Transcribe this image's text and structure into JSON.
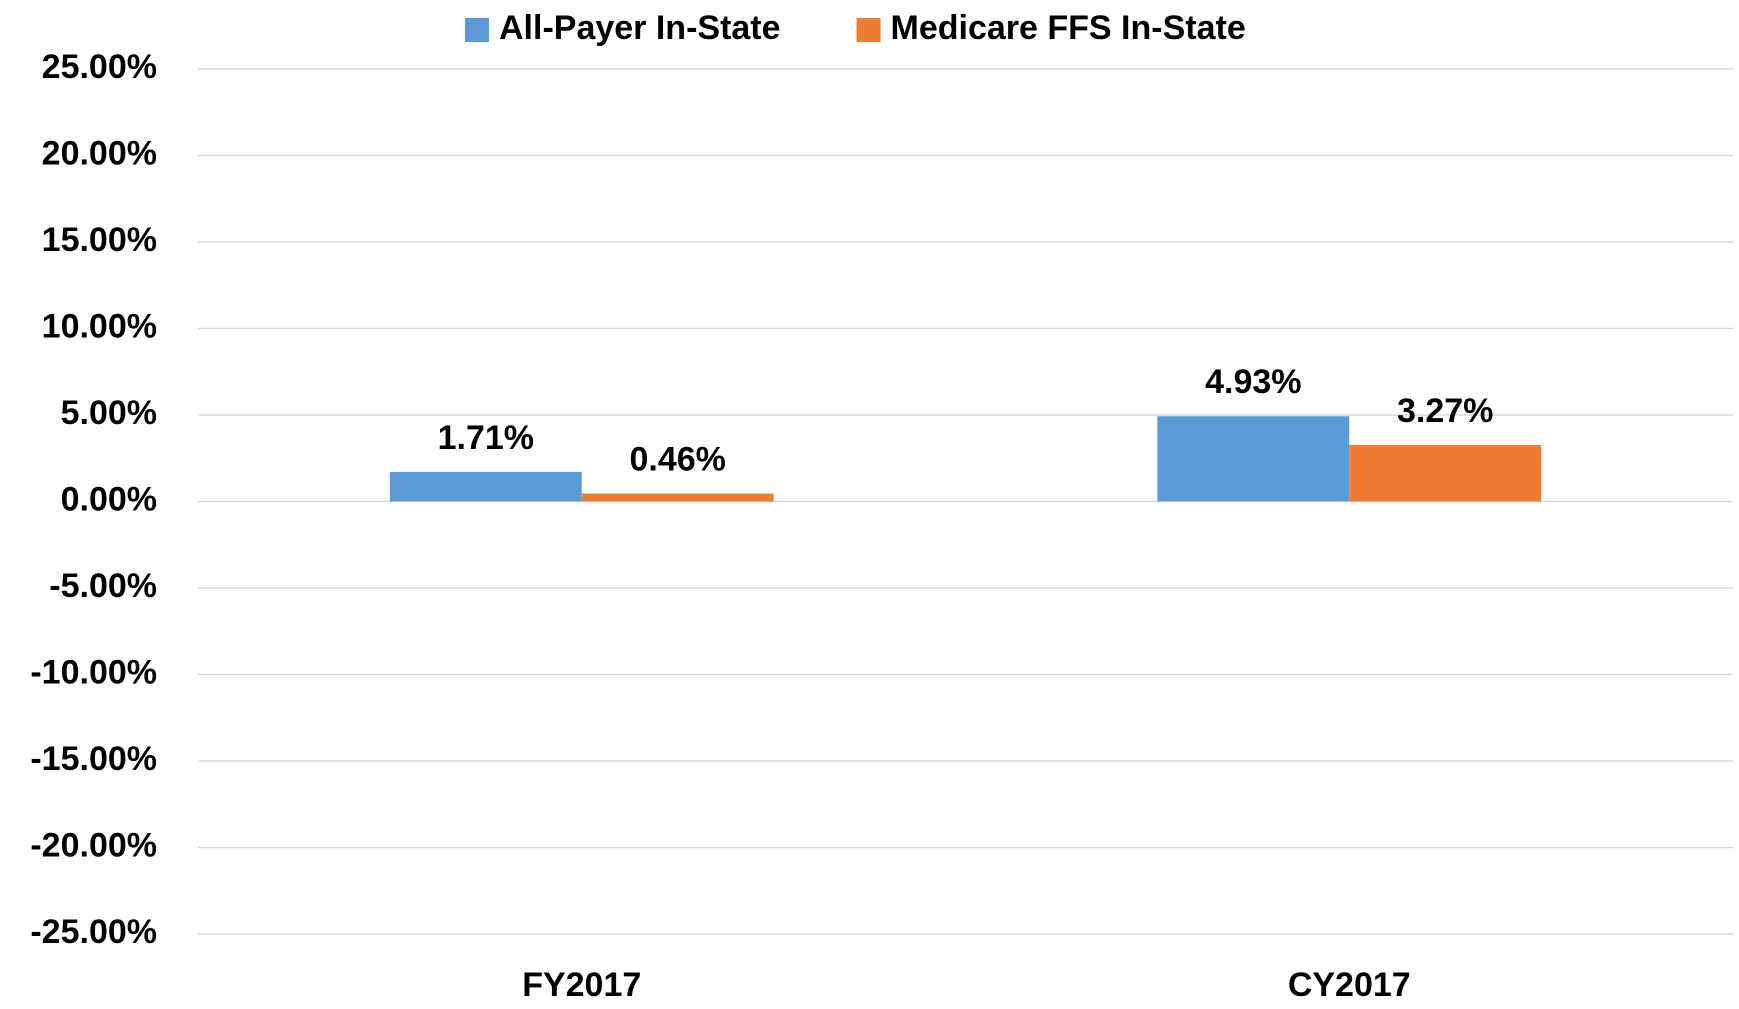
{
  "chart_data": {
    "type": "bar",
    "categories": [
      "FY2017",
      "CY2017"
    ],
    "series": [
      {
        "name": "All-Payer In-State",
        "color": "#5b9bd5",
        "values": [
          1.71,
          4.93
        ],
        "value_labels": [
          "1.71%",
          "4.93%"
        ]
      },
      {
        "name": "Medicare FFS In-State",
        "color": "#ed7d31",
        "values": [
          0.46,
          3.27
        ],
        "value_labels": [
          "0.46%",
          "3.27%"
        ]
      }
    ],
    "ylim": [
      -25,
      25
    ],
    "yticks": [
      {
        "value": -25,
        "label": "-25.00%"
      },
      {
        "value": -20,
        "label": "-20.00%"
      },
      {
        "value": -15,
        "label": "-15.00%"
      },
      {
        "value": -10,
        "label": "-10.00%"
      },
      {
        "value": -5,
        "label": "-5.00%"
      },
      {
        "value": 0,
        "label": "0.00%"
      },
      {
        "value": 5,
        "label": "5.00%"
      },
      {
        "value": 10,
        "label": "10.00%"
      },
      {
        "value": 15,
        "label": "15.00%"
      },
      {
        "value": 20,
        "label": "20.00%"
      },
      {
        "value": 25,
        "label": "25.00%"
      }
    ],
    "grid": true,
    "legend": "top"
  }
}
